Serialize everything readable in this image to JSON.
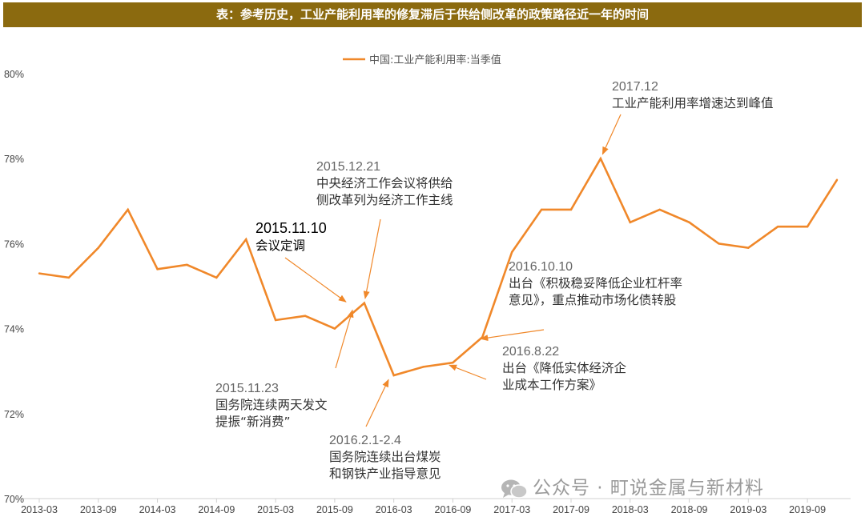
{
  "title": "表：参考历史，工业产能利用率的修复滞后于供给侧改革的政策路径近一年的时间",
  "watermark": "公众号 · 町说金属与新材料",
  "colors": {
    "line": "#F0882A",
    "title_bg": "#8B6A0F",
    "arrow": "#F0882A",
    "axis": "#d0d0d0"
  },
  "chart_data": {
    "type": "line",
    "title": "",
    "xlabel": "",
    "ylabel": "",
    "legend_position": "top-center",
    "grid": false,
    "ylim": [
      70,
      80
    ],
    "y_ticks": [
      "80%",
      "78%",
      "76%",
      "74%",
      "72%",
      "70%"
    ],
    "y_tick_values": [
      80,
      78,
      76,
      74,
      72,
      70
    ],
    "x_ticks": [
      "2013-03",
      "2013-09",
      "2014-03",
      "2014-09",
      "2015-03",
      "2015-09",
      "2016-03",
      "2016-09",
      "2017-03",
      "2017-09",
      "2018-03",
      "2018-09",
      "2019-03",
      "2019-09"
    ],
    "series": [
      {
        "name": "中国:工业产能利用率:当季值",
        "x": [
          "2013-03",
          "2013-06",
          "2013-09",
          "2013-12",
          "2014-03",
          "2014-06",
          "2014-09",
          "2014-12",
          "2015-03",
          "2015-06",
          "2015-09",
          "2015-12",
          "2016-03",
          "2016-06",
          "2016-09",
          "2016-12",
          "2017-03",
          "2017-06",
          "2017-09",
          "2017-12",
          "2018-03",
          "2018-06",
          "2018-09",
          "2018-12",
          "2019-03",
          "2019-06",
          "2019-09",
          "2019-12"
        ],
        "values": [
          75.3,
          75.2,
          75.9,
          76.8,
          75.4,
          75.5,
          75.2,
          76.1,
          74.2,
          74.3,
          74.0,
          74.6,
          72.9,
          73.1,
          73.2,
          73.8,
          75.8,
          76.8,
          76.8,
          78.0,
          76.5,
          76.8,
          76.5,
          76.0,
          75.9,
          76.4,
          76.4,
          77.5
        ]
      }
    ],
    "annotations": [
      {
        "lines": [
          "2017.12",
          "工业产能利用率增速达到峰值"
        ],
        "style": "normal"
      },
      {
        "lines": [
          "2015.12.21",
          "中央经济工作会议将供给",
          "侧改革列为经济工作主线"
        ],
        "style": "normal"
      },
      {
        "lines": [
          "2015.11.10",
          "会议定调"
        ],
        "style": "strong"
      },
      {
        "lines": [
          "2016.10.10",
          "出台《积极稳妥降低企业杠杆率",
          "意见》，重点推动市场化债转股"
        ],
        "style": "normal"
      },
      {
        "lines": [
          "2016.8.22",
          "出台《降低实体经济企",
          "业成本工作方案》"
        ],
        "style": "normal"
      },
      {
        "lines": [
          "2015.11.23",
          "国务院连续两天发文",
          "提振“新消费”"
        ],
        "style": "normal"
      },
      {
        "lines": [
          "2016.2.1-2.4",
          "国务院连续出台煤炭",
          "和钢铁产业指导意见"
        ],
        "style": "normal"
      }
    ]
  }
}
